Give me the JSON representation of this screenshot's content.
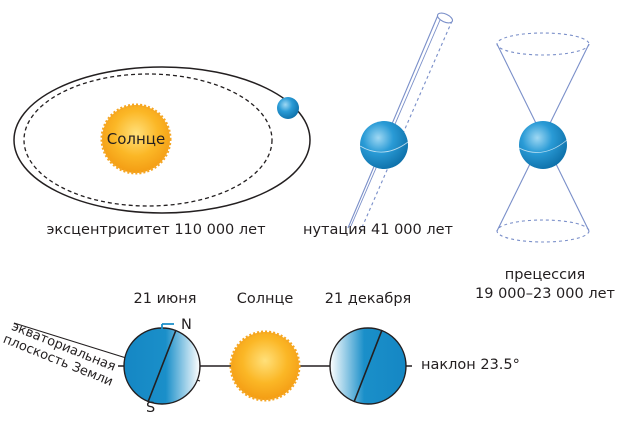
{
  "eccentricity": {
    "sun_label": "Солнце",
    "caption": "эксцентриситет 110 000 лет"
  },
  "nutation": {
    "caption": "нутация 41 000 лет"
  },
  "precession": {
    "caption_line1": "прецессия",
    "caption_line2": "19 000–23 000 лет"
  },
  "tilt": {
    "june_label": "21 июня",
    "sun_label": "Солнце",
    "december_label": "21 декабря",
    "north_label": "N",
    "south_label": "S",
    "equatorial_plane_line1": "экваториальная",
    "equatorial_plane_line2": "плоскость Земли",
    "tilt_caption": "наклон 23.5°"
  },
  "colors": {
    "earth_blue": "#1a8fc9",
    "sun_orange": "#f7a21b",
    "sun_yellow": "#ffd84a",
    "line": "#231f20",
    "axis_blue": "#7a8fc9"
  }
}
